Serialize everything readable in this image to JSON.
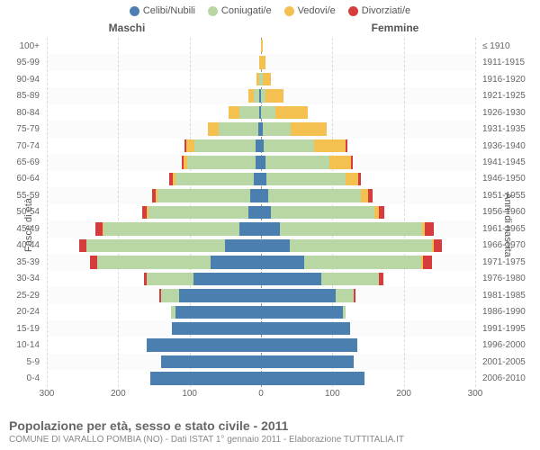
{
  "legend": [
    {
      "label": "Celibi/Nubili",
      "color": "#4a7fb0"
    },
    {
      "label": "Coniugati/e",
      "color": "#b9d6a5"
    },
    {
      "label": "Vedovi/e",
      "color": "#f4c04f"
    },
    {
      "label": "Divorziati/e",
      "color": "#d73c3c"
    }
  ],
  "headers": {
    "left": "Maschi",
    "right": "Femmine"
  },
  "axis_titles": {
    "left": "Fasce di età",
    "right": "Anni di nascita"
  },
  "footer": {
    "title": "Popolazione per età, sesso e stato civile - 2011",
    "subtitle": "COMUNE DI VARALLO POMBIA (NO) - Dati ISTAT 1° gennaio 2011 - Elaborazione TUTTITALIA.IT"
  },
  "chart": {
    "type": "population-pyramid",
    "xmax": 300,
    "xticks": [
      300,
      200,
      100,
      0,
      100,
      200,
      300
    ],
    "background_color": "#ffffff",
    "grid_color": "#dddddd",
    "center_color": "#999999",
    "series_colors": {
      "celibi": "#4a7fb0",
      "coniugati": "#b9d6a5",
      "vedovi": "#f4c04f",
      "divorziati": "#d73c3c"
    },
    "age_labels": [
      "100+",
      "95-99",
      "90-94",
      "85-89",
      "80-84",
      "75-79",
      "70-74",
      "65-69",
      "60-64",
      "55-59",
      "50-54",
      "45-49",
      "40-44",
      "35-39",
      "30-34",
      "25-29",
      "20-24",
      "15-19",
      "10-14",
      "5-9",
      "0-4"
    ],
    "birth_labels": [
      "≤ 1910",
      "1911-1915",
      "1916-1920",
      "1921-1925",
      "1926-1930",
      "1931-1935",
      "1936-1940",
      "1941-1945",
      "1946-1950",
      "1951-1955",
      "1956-1960",
      "1961-1965",
      "1966-1970",
      "1971-1975",
      "1976-1980",
      "1981-1985",
      "1986-1990",
      "1991-1995",
      "1996-2000",
      "2001-2005",
      "2006-2010"
    ],
    "male": [
      [
        0,
        0,
        0,
        0
      ],
      [
        0,
        0,
        2,
        0
      ],
      [
        0,
        2,
        4,
        0
      ],
      [
        2,
        8,
        8,
        0
      ],
      [
        2,
        28,
        15,
        0
      ],
      [
        4,
        55,
        15,
        0
      ],
      [
        8,
        85,
        12,
        2
      ],
      [
        8,
        95,
        6,
        2
      ],
      [
        10,
        110,
        4,
        4
      ],
      [
        15,
        130,
        2,
        6
      ],
      [
        18,
        140,
        2,
        6
      ],
      [
        30,
        190,
        2,
        10
      ],
      [
        50,
        195,
        0,
        10
      ],
      [
        70,
        160,
        0,
        10
      ],
      [
        95,
        65,
        0,
        4
      ],
      [
        115,
        25,
        0,
        2
      ],
      [
        120,
        6,
        0,
        0
      ],
      [
        125,
        0,
        0,
        0
      ],
      [
        160,
        0,
        0,
        0
      ],
      [
        140,
        0,
        0,
        0
      ],
      [
        155,
        0,
        0,
        0
      ]
    ],
    "female": [
      [
        0,
        0,
        2,
        0
      ],
      [
        0,
        0,
        6,
        0
      ],
      [
        0,
        2,
        12,
        0
      ],
      [
        0,
        6,
        25,
        0
      ],
      [
        0,
        20,
        45,
        0
      ],
      [
        2,
        40,
        50,
        0
      ],
      [
        4,
        70,
        45,
        2
      ],
      [
        6,
        90,
        30,
        2
      ],
      [
        8,
        110,
        18,
        4
      ],
      [
        10,
        130,
        10,
        6
      ],
      [
        14,
        145,
        6,
        8
      ],
      [
        26,
        200,
        4,
        12
      ],
      [
        40,
        200,
        2,
        12
      ],
      [
        60,
        165,
        2,
        12
      ],
      [
        85,
        80,
        0,
        6
      ],
      [
        105,
        25,
        0,
        2
      ],
      [
        115,
        4,
        0,
        0
      ],
      [
        125,
        0,
        0,
        0
      ],
      [
        135,
        0,
        0,
        0
      ],
      [
        130,
        0,
        0,
        0
      ],
      [
        145,
        0,
        0,
        0
      ]
    ]
  }
}
